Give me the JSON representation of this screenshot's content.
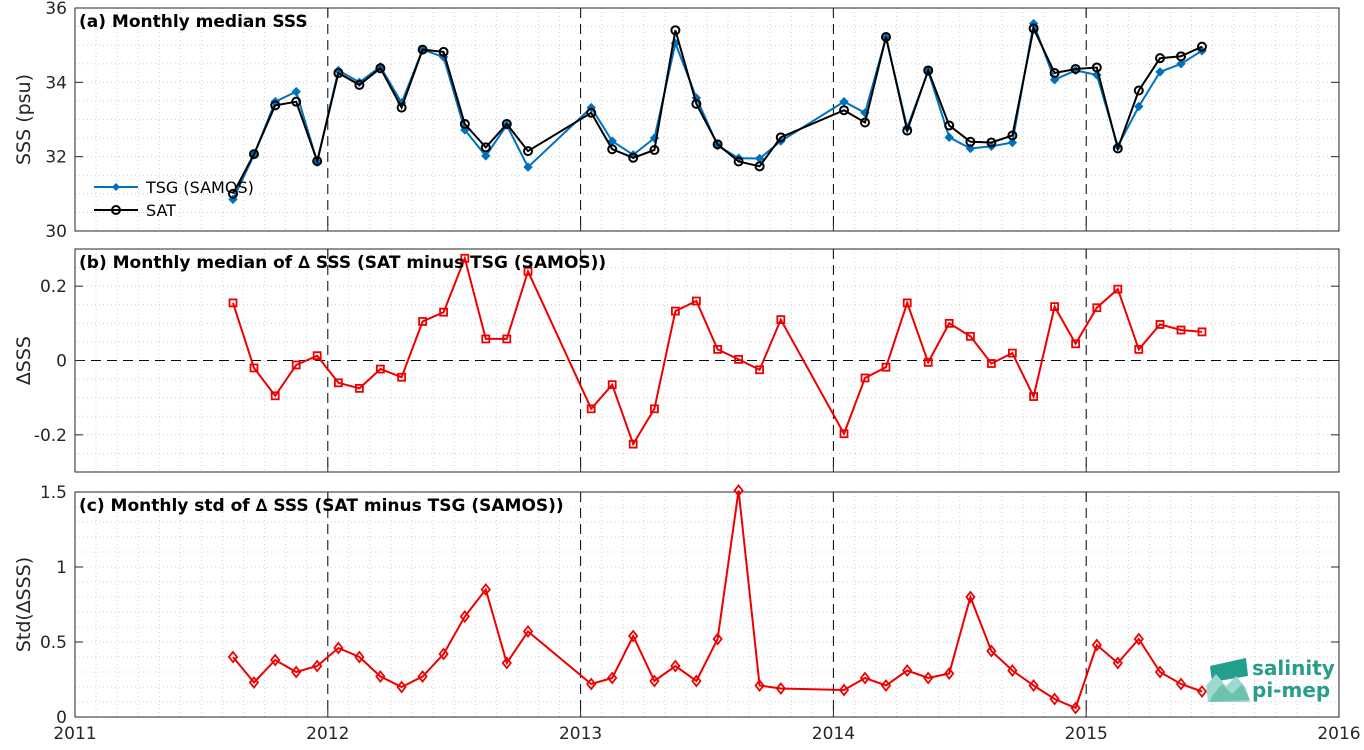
{
  "chart_data": [
    {
      "id": "a",
      "type": "line",
      "title": "(a) Monthly median SSS",
      "ylabel": "SSS (psu)",
      "xlim": [
        2011,
        2016
      ],
      "ylim": [
        30,
        36
      ],
      "yticks": [
        30,
        32,
        34,
        36
      ],
      "ytick_labels": [
        "30",
        "32",
        "34",
        "36"
      ],
      "grid": true,
      "legend": {
        "position": "bottom-left",
        "entries": [
          "TSG (SAMOS)",
          "SAT"
        ]
      },
      "series": [
        {
          "name": "TSG (SAMOS)",
          "color": "#0072bd",
          "marker": "diamond-filled",
          "x": [
            2011.625,
            2011.708,
            2011.792,
            2011.875,
            2011.958,
            2012.042,
            2012.125,
            2012.208,
            2012.292,
            2012.375,
            2012.458,
            2012.542,
            2012.625,
            2012.708,
            2012.792,
            2013.042,
            2013.125,
            2013.208,
            2013.292,
            2013.375,
            2013.458,
            2013.542,
            2013.625,
            2013.708,
            2013.792,
            2014.042,
            2014.125,
            2014.208,
            2014.292,
            2014.375,
            2014.458,
            2014.542,
            2014.625,
            2014.708,
            2014.792,
            2014.875,
            2014.958,
            2015.042,
            2015.125,
            2015.208,
            2015.292,
            2015.375,
            2015.458
          ],
          "y": [
            30.85,
            32.05,
            33.48,
            33.75,
            31.85,
            34.32,
            34.0,
            34.42,
            33.45,
            34.88,
            34.68,
            32.72,
            32.02,
            32.85,
            31.72,
            33.32,
            32.42,
            32.05,
            32.5,
            35.05,
            33.58,
            32.3,
            31.96,
            31.95,
            32.42,
            33.48,
            33.18,
            35.2,
            32.78,
            34.3,
            32.52,
            32.22,
            32.28,
            32.38,
            35.58,
            34.07,
            34.32,
            34.2,
            32.28,
            33.35,
            34.28,
            34.5,
            34.85
          ]
        },
        {
          "name": "SAT",
          "color": "#000000",
          "marker": "circle-open",
          "x": [
            2011.625,
            2011.708,
            2011.792,
            2011.875,
            2011.958,
            2012.042,
            2012.125,
            2012.208,
            2012.292,
            2012.375,
            2012.458,
            2012.542,
            2012.625,
            2012.708,
            2012.792,
            2013.042,
            2013.125,
            2013.208,
            2013.292,
            2013.375,
            2013.458,
            2013.542,
            2013.625,
            2013.708,
            2013.792,
            2014.042,
            2014.125,
            2014.208,
            2014.292,
            2014.375,
            2014.458,
            2014.542,
            2014.625,
            2014.708,
            2014.792,
            2014.875,
            2014.958,
            2015.042,
            2015.125,
            2015.208,
            2015.292,
            2015.375,
            2015.458
          ],
          "y": [
            31.0,
            32.07,
            33.38,
            33.48,
            31.88,
            34.25,
            33.93,
            34.38,
            33.32,
            34.88,
            34.82,
            32.88,
            32.25,
            32.88,
            32.15,
            33.18,
            32.2,
            31.97,
            32.18,
            35.4,
            33.42,
            32.33,
            31.87,
            31.74,
            32.52,
            33.25,
            32.92,
            35.22,
            32.7,
            34.32,
            32.84,
            32.4,
            32.38,
            32.57,
            35.45,
            34.25,
            34.36,
            34.4,
            32.22,
            33.78,
            34.65,
            34.7,
            34.96
          ]
        }
      ]
    },
    {
      "id": "b",
      "type": "line",
      "title": "(b) Monthly median of ∆ SSS (SAT minus TSG (SAMOS))",
      "ylabel": "∆SSS",
      "xlim": [
        2011,
        2016
      ],
      "ylim": [
        -0.3,
        0.3
      ],
      "yticks": [
        -0.2,
        0,
        0.2
      ],
      "ytick_labels": [
        "-0.2",
        "0",
        "0.2"
      ],
      "grid": true,
      "reference_line": 0,
      "series": [
        {
          "name": "",
          "color": "#ee0000",
          "marker": "square-open",
          "x": [
            2011.625,
            2011.708,
            2011.792,
            2011.875,
            2011.958,
            2012.042,
            2012.125,
            2012.208,
            2012.292,
            2012.375,
            2012.458,
            2012.542,
            2012.625,
            2012.708,
            2012.792,
            2013.042,
            2013.125,
            2013.208,
            2013.292,
            2013.375,
            2013.458,
            2013.542,
            2013.625,
            2013.708,
            2013.792,
            2014.042,
            2014.125,
            2014.208,
            2014.292,
            2014.375,
            2014.458,
            2014.542,
            2014.625,
            2014.708,
            2014.792,
            2014.875,
            2014.958,
            2015.042,
            2015.125,
            2015.208,
            2015.292,
            2015.375,
            2015.458
          ],
          "y": [
            0.155,
            -0.02,
            -0.095,
            -0.012,
            0.013,
            -0.06,
            -0.075,
            -0.023,
            -0.045,
            0.105,
            0.13,
            0.275,
            0.058,
            0.058,
            0.24,
            -0.13,
            -0.065,
            -0.225,
            -0.13,
            0.133,
            0.16,
            0.03,
            0.003,
            -0.025,
            0.11,
            -0.197,
            -0.047,
            -0.018,
            0.155,
            -0.005,
            0.1,
            0.065,
            -0.008,
            0.02,
            -0.097,
            0.145,
            0.045,
            0.142,
            0.192,
            0.03,
            0.097,
            0.082,
            0.077
          ]
        }
      ]
    },
    {
      "id": "c",
      "type": "line",
      "title": "(c) Monthly std of ∆ SSS (SAT minus TSG (SAMOS))",
      "ylabel": "Std(∆SSS)",
      "xlabel": "",
      "xlim": [
        2011,
        2016
      ],
      "ylim": [
        0,
        1.5
      ],
      "yticks": [
        0,
        0.5,
        1,
        1.5
      ],
      "ytick_labels": [
        "0",
        "0.5",
        "1",
        "1.5"
      ],
      "xticks": [
        2011,
        2012,
        2013,
        2014,
        2015,
        2016
      ],
      "xtick_labels": [
        "2011",
        "2012",
        "2013",
        "2014",
        "2015",
        "2016"
      ],
      "grid": true,
      "series": [
        {
          "name": "",
          "color": "#ee0000",
          "marker": "diamond-open",
          "x": [
            2011.625,
            2011.708,
            2011.792,
            2011.875,
            2011.958,
            2012.042,
            2012.125,
            2012.208,
            2012.292,
            2012.375,
            2012.458,
            2012.542,
            2012.625,
            2012.708,
            2012.792,
            2013.042,
            2013.125,
            2013.208,
            2013.292,
            2013.375,
            2013.458,
            2013.542,
            2013.625,
            2013.708,
            2013.792,
            2014.042,
            2014.125,
            2014.208,
            2014.292,
            2014.375,
            2014.458,
            2014.542,
            2014.625,
            2014.708,
            2014.792,
            2014.875,
            2014.958,
            2015.042,
            2015.125,
            2015.208,
            2015.292,
            2015.375,
            2015.458
          ],
          "y": [
            0.4,
            0.23,
            0.38,
            0.3,
            0.34,
            0.46,
            0.4,
            0.27,
            0.2,
            0.27,
            0.42,
            0.67,
            0.85,
            0.36,
            0.57,
            0.22,
            0.26,
            0.54,
            0.24,
            0.34,
            0.24,
            0.52,
            1.51,
            0.21,
            0.19,
            0.18,
            0.26,
            0.21,
            0.31,
            0.26,
            0.29,
            0.8,
            0.44,
            0.31,
            0.21,
            0.12,
            0.06,
            0.48,
            0.36,
            0.52,
            0.3,
            0.22,
            0.17
          ]
        }
      ]
    }
  ],
  "logo": {
    "text_top": "salinity",
    "text_bottom": "pi-mep",
    "color": "#2a9d8a"
  }
}
